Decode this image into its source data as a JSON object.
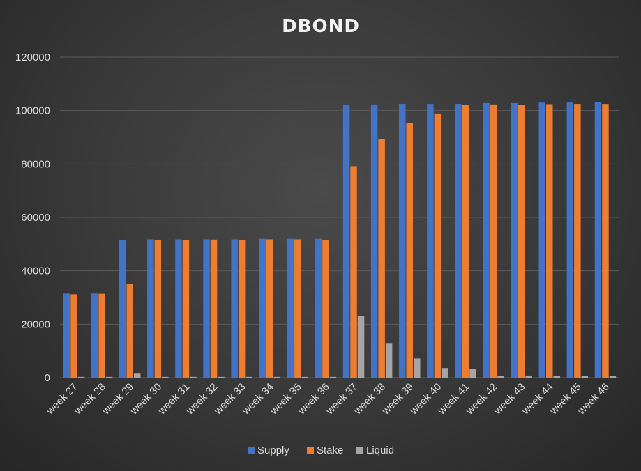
{
  "chart_data": {
    "type": "bar",
    "title": "DBOND",
    "xlabel": "",
    "ylabel": "",
    "ylim": [
      0,
      120000
    ],
    "yticks": [
      0,
      20000,
      40000,
      60000,
      80000,
      100000,
      120000
    ],
    "grid": true,
    "legend_position": "bottom",
    "categories": [
      "week 27",
      "week 28",
      "week 29",
      "week 30",
      "week 31",
      "week 32",
      "week 33",
      "week 34",
      "week 35",
      "week 36",
      "week 37",
      "week 38",
      "week 39",
      "week 40",
      "week 41",
      "week 42",
      "week 43",
      "week 44",
      "week 45",
      "week 46"
    ],
    "series": [
      {
        "name": "Supply",
        "color": "#4472c4",
        "values": [
          31500,
          31500,
          51500,
          51800,
          51800,
          51800,
          51800,
          52000,
          52000,
          52000,
          102300,
          102300,
          102500,
          102500,
          102500,
          102800,
          102800,
          103000,
          103000,
          103200
        ]
      },
      {
        "name": "Stake",
        "color": "#ed7d31",
        "values": [
          31200,
          31400,
          35000,
          51600,
          51600,
          51700,
          51600,
          51800,
          51800,
          51500,
          79200,
          89400,
          95300,
          98900,
          102200,
          102300,
          102100,
          102400,
          102500,
          102500
        ]
      },
      {
        "name": "Liquid",
        "color": "#a5a5a5",
        "values": [
          300,
          300,
          1500,
          300,
          300,
          300,
          300,
          300,
          300,
          300,
          23000,
          12700,
          7200,
          3600,
          3300,
          600,
          800,
          600,
          600,
          700
        ]
      }
    ]
  }
}
